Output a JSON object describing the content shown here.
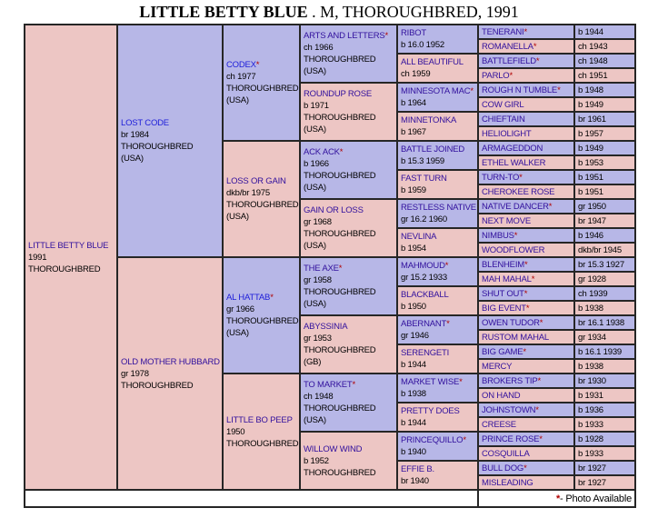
{
  "title": {
    "name": "LITTLE BETTY BLUE",
    "suffix": " . M, THOROUGHBRED, 1991"
  },
  "footer": {
    "note_symbol": "*",
    "note_text": " - Photo Available"
  },
  "colors": {
    "male_bg": "#b7b7e7",
    "female_bg": "#edc6c4",
    "link_purple": "#31109d",
    "link_blue": "#1d1dd9",
    "asterisk_red": "#b00000",
    "border": "#262626",
    "footer_bg": "#ffffff"
  },
  "pedigree": {
    "subject": {
      "name": "LITTLE BETTY BLUE",
      "photo": false,
      "link": "purple",
      "sex": "f",
      "details": [
        "1991",
        "THOROUGHBRED"
      ]
    },
    "gen2": [
      {
        "name": "LOST CODE",
        "photo": false,
        "link": "blue",
        "sex": "m",
        "details": [
          "br 1984",
          "THOROUGHBRED",
          "(USA)"
        ]
      },
      {
        "name": "OLD MOTHER HUBBARD",
        "photo": false,
        "link": "purple",
        "sex": "f",
        "details": [
          "gr 1978",
          "THOROUGHBRED"
        ]
      }
    ],
    "gen3": [
      {
        "name": "CODEX",
        "photo": true,
        "link": "blue",
        "sex": "m",
        "details": [
          "ch 1977",
          "THOROUGHBRED",
          "(USA)"
        ]
      },
      {
        "name": "LOSS OR GAIN",
        "photo": false,
        "link": "purple",
        "sex": "f",
        "details": [
          "dkb/br 1975",
          "THOROUGHBRED",
          "(USA)"
        ]
      },
      {
        "name": "AL HATTAB",
        "photo": true,
        "link": "blue",
        "sex": "m",
        "details": [
          "gr 1966",
          "THOROUGHBRED",
          "(USA)"
        ]
      },
      {
        "name": "LITTLE BO PEEP",
        "photo": false,
        "link": "purple",
        "sex": "f",
        "details": [
          "1950",
          "THOROUGHBRED"
        ]
      }
    ],
    "gen4": [
      {
        "name": "ARTS AND LETTERS",
        "photo": true,
        "link": "purple",
        "sex": "m",
        "details": [
          "ch 1966",
          "THOROUGHBRED",
          "(USA)"
        ]
      },
      {
        "name": "ROUNDUP ROSE",
        "photo": false,
        "link": "purple",
        "sex": "f",
        "details": [
          "b 1971",
          "THOROUGHBRED",
          "(USA)"
        ]
      },
      {
        "name": "ACK ACK",
        "photo": true,
        "link": "purple",
        "sex": "m",
        "details": [
          "b 1966",
          "THOROUGHBRED",
          "(USA)"
        ]
      },
      {
        "name": "GAIN OR LOSS",
        "photo": false,
        "link": "purple",
        "sex": "f",
        "details": [
          "gr 1968",
          "THOROUGHBRED",
          "(USA)"
        ]
      },
      {
        "name": "THE AXE",
        "photo": true,
        "link": "purple",
        "sex": "m",
        "details": [
          "gr 1958",
          "THOROUGHBRED",
          "(USA)"
        ]
      },
      {
        "name": "ABYSSINIA",
        "photo": false,
        "link": "purple",
        "sex": "f",
        "details": [
          "gr 1953",
          "THOROUGHBRED",
          "(GB)"
        ]
      },
      {
        "name": "TO MARKET",
        "photo": true,
        "link": "purple",
        "sex": "m",
        "details": [
          "ch 1948",
          "THOROUGHBRED",
          "(USA)"
        ]
      },
      {
        "name": "WILLOW WIND",
        "photo": false,
        "link": "purple",
        "sex": "f",
        "details": [
          "b 1952",
          "THOROUGHBRED"
        ]
      }
    ],
    "gen5": [
      {
        "name": "RIBOT",
        "photo": false,
        "link": "purple",
        "sex": "m",
        "details": [
          "b 16.0 1952"
        ]
      },
      {
        "name": "ALL BEAUTIFUL",
        "photo": false,
        "link": "purple",
        "sex": "f",
        "details": [
          "ch 1959"
        ]
      },
      {
        "name": "MINNESOTA MAC",
        "photo": true,
        "link": "purple",
        "sex": "m",
        "details": [
          "b 1964"
        ]
      },
      {
        "name": "MINNETONKA",
        "photo": false,
        "link": "purple",
        "sex": "f",
        "details": [
          "b 1967"
        ]
      },
      {
        "name": "BATTLE JOINED",
        "photo": false,
        "link": "purple",
        "sex": "m",
        "details": [
          "b 15.3 1959"
        ]
      },
      {
        "name": "FAST TURN",
        "photo": false,
        "link": "purple",
        "sex": "f",
        "details": [
          "b 1959"
        ]
      },
      {
        "name": "RESTLESS NATIVE",
        "photo": false,
        "link": "purple",
        "sex": "m",
        "details": [
          "gr 16.2 1960"
        ]
      },
      {
        "name": "NEVLINA",
        "photo": false,
        "link": "purple",
        "sex": "f",
        "details": [
          "b 1954"
        ]
      },
      {
        "name": "MAHMOUD",
        "photo": true,
        "link": "purple",
        "sex": "m",
        "details": [
          "gr 15.2 1933"
        ]
      },
      {
        "name": "BLACKBALL",
        "photo": false,
        "link": "purple",
        "sex": "f",
        "details": [
          "b 1950"
        ]
      },
      {
        "name": "ABERNANT",
        "photo": true,
        "link": "purple",
        "sex": "m",
        "details": [
          "gr 1946"
        ]
      },
      {
        "name": "SERENGETI",
        "photo": false,
        "link": "purple",
        "sex": "f",
        "details": [
          "b 1944"
        ]
      },
      {
        "name": "MARKET WISE",
        "photo": true,
        "link": "purple",
        "sex": "m",
        "details": [
          "b 1938"
        ]
      },
      {
        "name": "PRETTY DOES",
        "photo": false,
        "link": "purple",
        "sex": "f",
        "details": [
          "b 1944"
        ]
      },
      {
        "name": "PRINCEQUILLO",
        "photo": true,
        "link": "purple",
        "sex": "m",
        "details": [
          "b 1940"
        ]
      },
      {
        "name": "EFFIE B.",
        "photo": false,
        "link": "purple",
        "sex": "f",
        "details": [
          "br 1940"
        ]
      }
    ],
    "gen6": [
      {
        "name": "TENERANI",
        "photo": true,
        "link": "purple",
        "sex": "m",
        "year": "b 1944"
      },
      {
        "name": "ROMANELLA",
        "photo": true,
        "link": "purple",
        "sex": "f",
        "year": "ch 1943"
      },
      {
        "name": "BATTLEFIELD",
        "photo": true,
        "link": "purple",
        "sex": "m",
        "year": "ch 1948"
      },
      {
        "name": "PARLO",
        "photo": true,
        "link": "purple",
        "sex": "f",
        "year": "ch 1951"
      },
      {
        "name": "ROUGH N TUMBLE",
        "photo": true,
        "link": "purple",
        "sex": "m",
        "year": "b 1948"
      },
      {
        "name": "COW GIRL",
        "photo": false,
        "link": "purple",
        "sex": "f",
        "year": "b 1949"
      },
      {
        "name": "CHIEFTAIN",
        "photo": false,
        "link": "purple",
        "sex": "m",
        "year": "br 1961"
      },
      {
        "name": "HELIOLIGHT",
        "photo": false,
        "link": "purple",
        "sex": "f",
        "year": "b 1957"
      },
      {
        "name": "ARMAGEDDON",
        "photo": false,
        "link": "purple",
        "sex": "m",
        "year": "b 1949"
      },
      {
        "name": "ETHEL WALKER",
        "photo": false,
        "link": "purple",
        "sex": "f",
        "year": "b 1953"
      },
      {
        "name": "TURN-TO",
        "photo": true,
        "link": "purple",
        "sex": "m",
        "year": "b 1951"
      },
      {
        "name": "CHEROKEE ROSE",
        "photo": false,
        "link": "purple",
        "sex": "f",
        "year": "b 1951"
      },
      {
        "name": "NATIVE DANCER",
        "photo": true,
        "link": "purple",
        "sex": "m",
        "year": "gr 1950"
      },
      {
        "name": "NEXT MOVE",
        "photo": false,
        "link": "purple",
        "sex": "f",
        "year": "br 1947"
      },
      {
        "name": "NIMBUS",
        "photo": true,
        "link": "purple",
        "sex": "m",
        "year": "b 1946"
      },
      {
        "name": "WOODFLOWER",
        "photo": false,
        "link": "purple",
        "sex": "f",
        "year": "dkb/br 1945"
      },
      {
        "name": "BLENHEIM",
        "photo": true,
        "link": "purple",
        "sex": "m",
        "year": "br 15.3 1927"
      },
      {
        "name": "MAH MAHAL",
        "photo": true,
        "link": "purple",
        "sex": "f",
        "year": "gr 1928"
      },
      {
        "name": "SHUT OUT",
        "photo": true,
        "link": "purple",
        "sex": "m",
        "year": "ch 1939"
      },
      {
        "name": "BIG EVENT",
        "photo": true,
        "link": "purple",
        "sex": "f",
        "year": "b 1938"
      },
      {
        "name": "OWEN TUDOR",
        "photo": true,
        "link": "purple",
        "sex": "m",
        "year": "br 16.1 1938"
      },
      {
        "name": "RUSTOM MAHAL",
        "photo": false,
        "link": "purple",
        "sex": "f",
        "year": "gr 1934"
      },
      {
        "name": "BIG GAME",
        "photo": true,
        "link": "purple",
        "sex": "m",
        "year": "b 16.1 1939"
      },
      {
        "name": "MERCY",
        "photo": false,
        "link": "purple",
        "sex": "f",
        "year": "b 1938"
      },
      {
        "name": "BROKERS TIP",
        "photo": true,
        "link": "purple",
        "sex": "m",
        "year": "br 1930"
      },
      {
        "name": "ON HAND",
        "photo": false,
        "link": "purple",
        "sex": "f",
        "year": "b 1931"
      },
      {
        "name": "JOHNSTOWN",
        "photo": true,
        "link": "purple",
        "sex": "m",
        "year": "b 1936"
      },
      {
        "name": "CREESE",
        "photo": false,
        "link": "purple",
        "sex": "f",
        "year": "b 1933"
      },
      {
        "name": "PRINCE ROSE",
        "photo": true,
        "link": "purple",
        "sex": "m",
        "year": "b 1928"
      },
      {
        "name": "COSQUILLA",
        "photo": false,
        "link": "purple",
        "sex": "f",
        "year": "b 1933"
      },
      {
        "name": "BULL DOG",
        "photo": true,
        "link": "purple",
        "sex": "m",
        "year": "br 1927"
      },
      {
        "name": "MISLEADING",
        "photo": false,
        "link": "purple",
        "sex": "f",
        "year": "br 1927"
      }
    ]
  }
}
